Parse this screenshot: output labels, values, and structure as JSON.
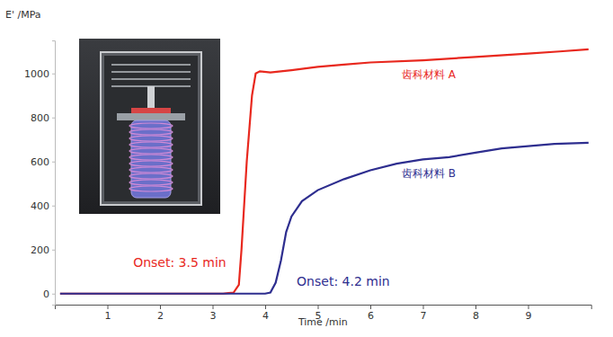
{
  "chart_data": {
    "type": "line",
    "x_label": "Time /min",
    "y_label": "E' /MPa",
    "xlim": [
      0,
      10.2
    ],
    "ylim": [
      -50,
      1150
    ],
    "xticks": [
      1,
      2,
      3,
      4,
      5,
      6,
      7,
      8,
      9
    ],
    "yticks": [
      0,
      200,
      400,
      600,
      800,
      1000
    ],
    "grid": false,
    "series": [
      {
        "name": "齿科材料 A",
        "color": "#e8281e",
        "x": [
          0.1,
          1,
          2,
          3,
          3.2,
          3.4,
          3.5,
          3.55,
          3.65,
          3.75,
          3.82,
          3.9,
          4.1,
          4.5,
          5,
          5.5,
          6,
          7,
          8,
          9,
          9.6,
          10.15
        ],
        "values": [
          0,
          0,
          0,
          0,
          0,
          5,
          40,
          200,
          600,
          900,
          1000,
          1010,
          1005,
          1015,
          1030,
          1040,
          1050,
          1060,
          1075,
          1090,
          1100,
          1110
        ]
      },
      {
        "name": "齿科材料 B",
        "color": "#2e2e8f",
        "x": [
          0.1,
          1,
          2,
          3,
          4,
          4.1,
          4.2,
          4.3,
          4.4,
          4.5,
          4.7,
          5,
          5.5,
          6,
          6.5,
          7,
          7.5,
          8,
          8.5,
          9,
          9.5,
          10.15
        ],
        "values": [
          0,
          0,
          0,
          0,
          0,
          5,
          50,
          150,
          280,
          350,
          420,
          470,
          520,
          560,
          590,
          610,
          620,
          640,
          660,
          670,
          680,
          685
        ]
      }
    ],
    "annotations": [
      {
        "text": "Onset: 3.5 min",
        "x": 1.49,
        "y": 122,
        "color": "#e8281e"
      },
      {
        "text": "Onset: 4.2 min",
        "x": 4.6,
        "y": 37,
        "color": "#2e2e8f"
      }
    ]
  }
}
